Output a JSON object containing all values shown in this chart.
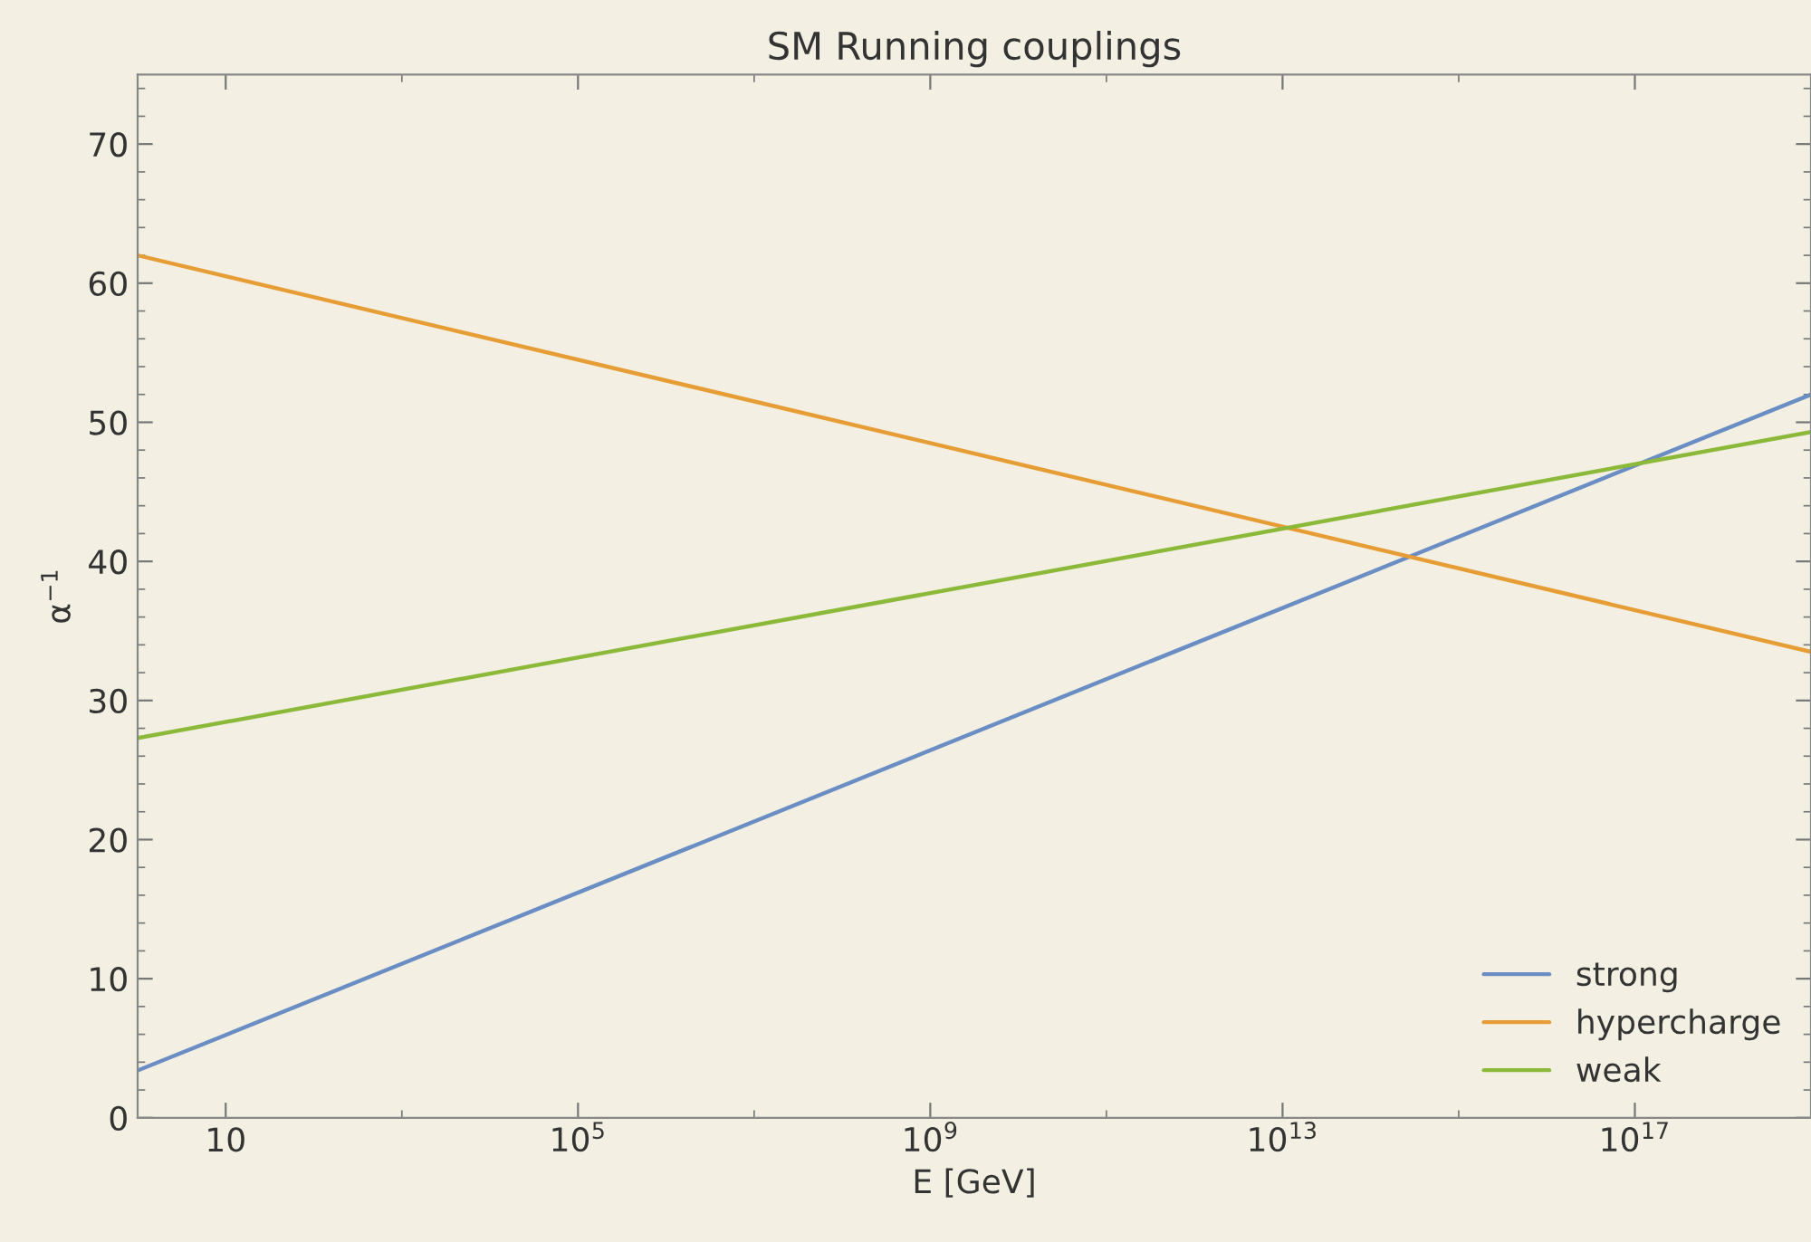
{
  "chart_data": {
    "type": "line",
    "title": "SM Running couplings",
    "xlabel": "E [GeV]",
    "ylabel": "α$^{−1}$",
    "x": [
      1,
      1e+19
    ],
    "series": [
      {
        "name": "strong",
        "color": "#6a8dc4",
        "values": [
          3.4,
          52.0
        ]
      },
      {
        "name": "hypercharge",
        "color": "#e69d35",
        "values": [
          62.0,
          33.5
        ]
      },
      {
        "name": "weak",
        "color": "#8cb93a",
        "values": [
          27.3,
          49.3
        ]
      }
    ],
    "log": "x",
    "xlim": [
      1,
      1e+19
    ],
    "xticks": [
      {
        "value": 10,
        "label": "10"
      },
      {
        "value": 100000.0,
        "label": "10$^{5}$"
      },
      {
        "value": 1000000000.0,
        "label": "10$^{9}$"
      },
      {
        "value": 10000000000000.0,
        "label": "10$^{13}$"
      },
      {
        "value": 1e+17,
        "label": "10$^{17}$"
      }
    ],
    "ylim": [
      0,
      75
    ],
    "yticks": [
      0,
      10,
      20,
      30,
      40,
      50,
      60,
      70
    ],
    "grid": false,
    "legend": "bottom right",
    "marker": "none",
    "line_style": "solid"
  }
}
